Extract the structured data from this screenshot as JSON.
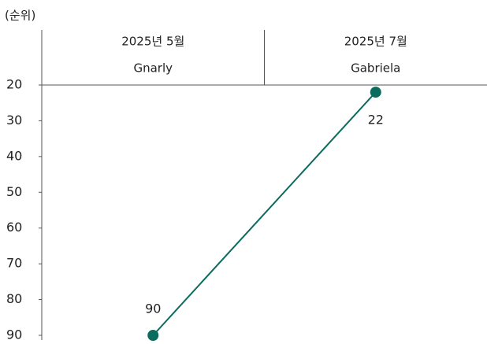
{
  "chart_data": {
    "type": "line",
    "y_axis_label": "(순위)",
    "categories": [
      "2025년 5월",
      "2025년 7월"
    ],
    "point_labels": [
      "Gnarly",
      "Gabriela"
    ],
    "series": [
      {
        "name": null,
        "color": "#0b6b5c",
        "values": [
          90,
          22
        ]
      }
    ],
    "ylim": [
      20,
      90
    ],
    "yticks": [
      20,
      30,
      40,
      50,
      60,
      70,
      80,
      90
    ],
    "y_reversed": true,
    "grid": false
  }
}
